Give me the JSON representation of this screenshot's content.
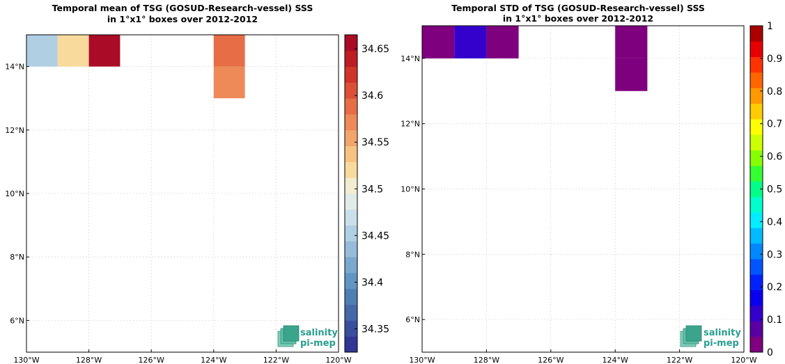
{
  "chart_data": [
    {
      "type": "heatmap",
      "title": "Temporal mean of TSG (GOSUD-Research-vessel) SSS",
      "subtitle": "in 1°x1° boxes over 2012-2012",
      "xlim": [
        -130,
        -120
      ],
      "ylim": [
        5,
        15
      ],
      "xticks": [
        -130,
        -128,
        -126,
        -124,
        -122,
        -120
      ],
      "xtick_labels": [
        "130°W",
        "128°W",
        "126°W",
        "124°W",
        "122°W",
        "120°W"
      ],
      "yticks": [
        6,
        8,
        10,
        12,
        14
      ],
      "ytick_labels": [
        "6°N",
        "8°N",
        "10°N",
        "12°N",
        "14°N"
      ],
      "grid": true,
      "colorbar": {
        "min": 34.325,
        "max": 34.665,
        "ticks": [
          34.35,
          34.4,
          34.45,
          34.5,
          34.55,
          34.6,
          34.65
        ],
        "tick_labels": [
          "34.35",
          "34.4",
          "34.45",
          "34.5",
          "34.55",
          "34.6",
          "34.65"
        ],
        "colors": [
          "#313695",
          "#3a4e9e",
          "#4569a8",
          "#4f7fb2",
          "#6295c3",
          "#7aa8ce",
          "#96bcd9",
          "#b0cfe3",
          "#c9e0ea",
          "#e0ece8",
          "#f2ecd0",
          "#f8da9c",
          "#f6c380",
          "#f2a66a",
          "#ed8a57",
          "#e66d45",
          "#dc5035",
          "#cf3529",
          "#be1d24",
          "#aa0b26"
        ]
      },
      "cells": [
        {
          "lon": -130,
          "lat": 14,
          "value": 34.445
        },
        {
          "lon": -129,
          "lat": 14,
          "value": 34.525
        },
        {
          "lon": -128,
          "lat": 14,
          "value": 34.655
        },
        {
          "lon": -124,
          "lat": 14,
          "value": 34.595
        },
        {
          "lon": -124,
          "lat": 13,
          "value": 34.58
        }
      ]
    },
    {
      "type": "heatmap",
      "title": "Temporal STD of TSG (GOSUD-Research-vessel) SSS",
      "subtitle": "in 1°x1° boxes over 2012-2012",
      "xlim": [
        -130,
        -120
      ],
      "ylim": [
        5,
        15
      ],
      "xticks": [
        -130,
        -128,
        -126,
        -124,
        -122,
        -120
      ],
      "xtick_labels": [
        "130°W",
        "128°W",
        "126°W",
        "124°W",
        "122°W",
        "120°W"
      ],
      "yticks": [
        6,
        8,
        10,
        12,
        14
      ],
      "ytick_labels": [
        "6°N",
        "8°N",
        "10°N",
        "12°N",
        "14°N"
      ],
      "grid": true,
      "colorbar": {
        "min": 0,
        "max": 1,
        "ticks": [
          0,
          0.1,
          0.2,
          0.3,
          0.4,
          0.5,
          0.6,
          0.7,
          0.8,
          0.9,
          1
        ],
        "tick_labels": [
          "0",
          "0.1",
          "0.2",
          "0.3",
          "0.4",
          "0.5",
          "0.6",
          "0.7",
          "0.8",
          "0.9",
          "1"
        ],
        "colors": [
          "#7f007f",
          "#5a00a3",
          "#3300cc",
          "#0a00f0",
          "#0022ff",
          "#0055ff",
          "#0088ff",
          "#00bbff",
          "#00eeff",
          "#00ffcc",
          "#00ff88",
          "#33ff33",
          "#88ff00",
          "#ccff00",
          "#ffff00",
          "#ffcc00",
          "#ff9900",
          "#ff6600",
          "#ff3300",
          "#e60000",
          "#aa0000"
        ]
      },
      "cells": [
        {
          "lon": -130,
          "lat": 14,
          "value": 0.02
        },
        {
          "lon": -129,
          "lat": 14,
          "value": 0.12
        },
        {
          "lon": -128,
          "lat": 14,
          "value": 0.02
        },
        {
          "lon": -124,
          "lat": 14,
          "value": 0.02
        },
        {
          "lon": -124,
          "lat": 13,
          "value": 0.02
        }
      ]
    }
  ],
  "logo": {
    "line1": "salinity",
    "line2": "pi-mep"
  }
}
